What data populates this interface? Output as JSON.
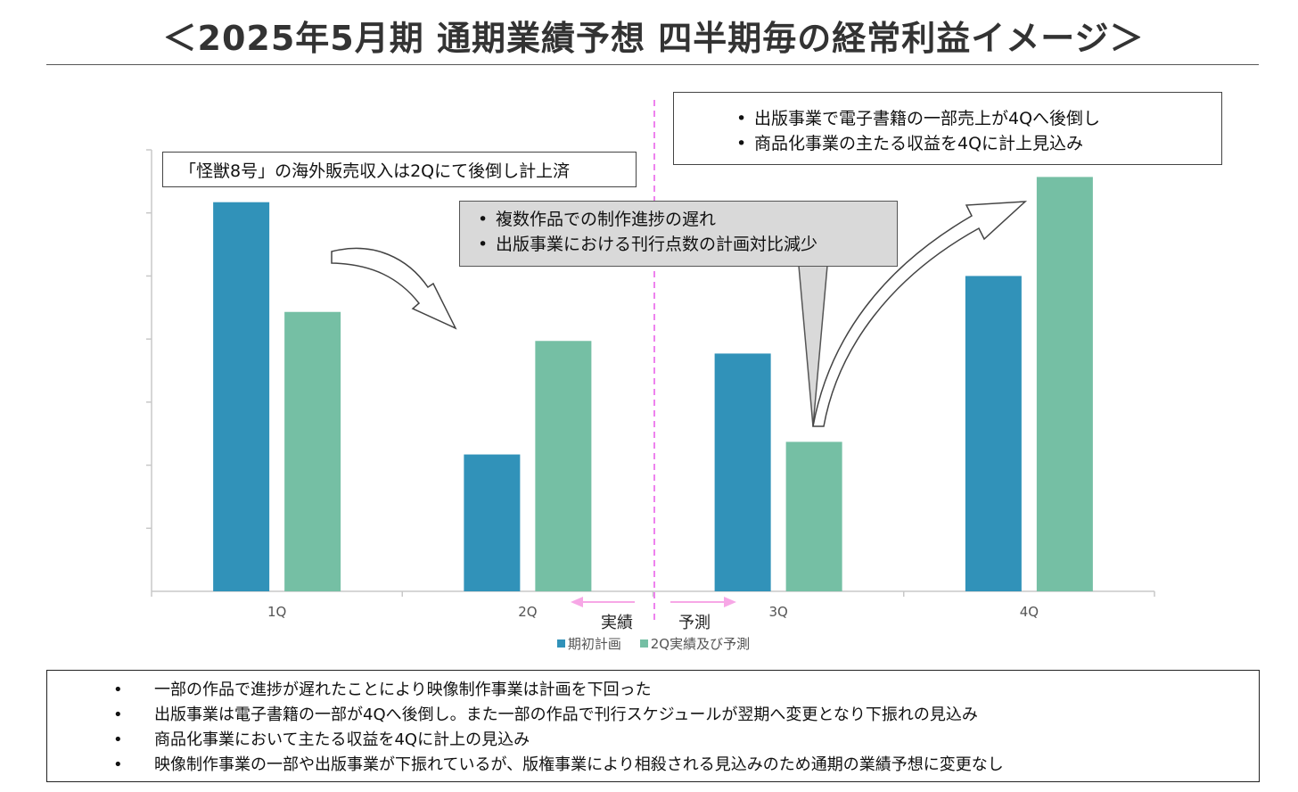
{
  "title": "＜2025年5月期 通期業績予想 四半期毎の経常利益イメージ＞",
  "callouts": {
    "overseas": "「怪獣8号」の海外販売収入は2Qにて後倒し計上済",
    "delay": [
      "複数作品での制作進捗の遅れ",
      "出版事業における刊行点数の計画対比減少"
    ],
    "shift": [
      "出版事業で電子書籍の一部売上が4Qへ後倒し",
      "商品化事業の主たる収益を4Qに計上見込み"
    ]
  },
  "markers": {
    "actual": "実績",
    "forecast": "予測"
  },
  "colors": {
    "plan": "#3192b9",
    "result": "#75bfa4",
    "divider": "#ee82ee",
    "arrow": "#f7a7e6"
  },
  "chart_data": {
    "type": "bar",
    "categories": [
      "1Q",
      "2Q",
      "3Q",
      "4Q"
    ],
    "series": [
      {
        "name": "期初計画",
        "values": [
          6.17,
          2.17,
          3.77,
          5.0
        ]
      },
      {
        "name": "2Q実績及び予測",
        "values": [
          4.43,
          3.97,
          2.37,
          6.57
        ]
      }
    ],
    "ylim": [
      0,
      7
    ],
    "title": "",
    "xlabel": "",
    "ylabel": "",
    "grid": false,
    "legend": "bottom"
  },
  "notes": [
    "一部の作品で進捗が遅れたことにより映像制作事業は計画を下回った",
    "出版事業は電子書籍の一部が4Qへ後倒し。また一部の作品で刊行スケジュールが翌期へ変更となり下振れの見込み",
    "商品化事業において主たる収益を4Qに計上の見込み",
    "映像制作事業の一部や出版事業が下振れているが、版権事業により相殺される見込みのため通期の業績予想に変更なし"
  ]
}
